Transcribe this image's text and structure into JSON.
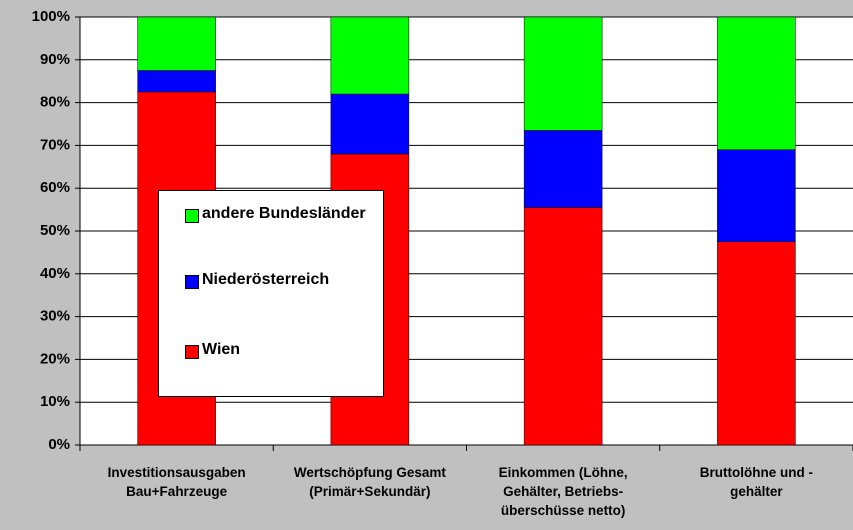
{
  "chart_data": {
    "type": "stacked_bar",
    "categories": [
      "Investitionsausgaben\nBau+Fahrzeuge",
      "Wertschöpfung Gesamt\n(Primär+Sekundär)",
      "Einkommen (Löhne,\nGehälter, Betriebs-\nüberschüsse netto)",
      "Bruttolöhne und -\ngehälter"
    ],
    "series": [
      {
        "name": "Wien",
        "color": "#ff0000",
        "values": [
          82.5,
          68,
          55.5,
          47.5
        ]
      },
      {
        "name": "Niederösterreich",
        "color": "#0000ff",
        "values": [
          5,
          14,
          18,
          21.5
        ]
      },
      {
        "name": "andere Bundesländer",
        "color": "#00ff00",
        "values": [
          12.5,
          18,
          26.5,
          31
        ]
      }
    ],
    "ylim": [
      0,
      100
    ],
    "yticks": [
      {
        "value": 0,
        "label": "0%"
      },
      {
        "value": 10,
        "label": "10%"
      },
      {
        "value": 20,
        "label": "20%"
      },
      {
        "value": 30,
        "label": "30%"
      },
      {
        "value": 40,
        "label": "40%"
      },
      {
        "value": 50,
        "label": "50%"
      },
      {
        "value": 60,
        "label": "60%"
      },
      {
        "value": 70,
        "label": "70%"
      },
      {
        "value": 80,
        "label": "80%"
      },
      {
        "value": 90,
        "label": "90%"
      },
      {
        "value": 100,
        "label": "100%"
      }
    ],
    "grid": true
  }
}
